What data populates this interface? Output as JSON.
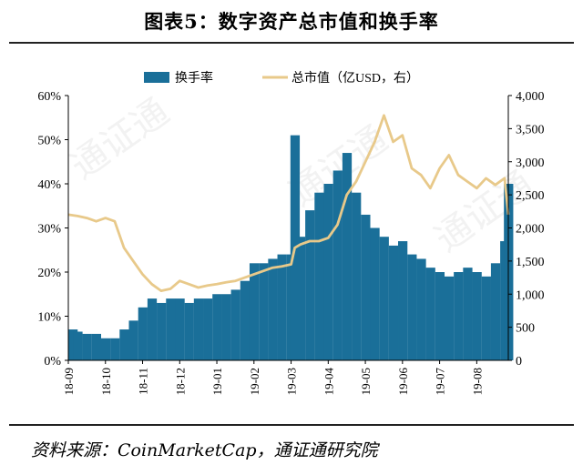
{
  "title": "图表5：数字资产总市值和换手率",
  "source": "资料来源：CoinMarketCap，通证通研究院",
  "colors": {
    "bar": "#1a6f99",
    "line": "#e8c98a",
    "text": "#000000"
  },
  "chart_data": {
    "type": "bar+line",
    "legend_position": "top-center",
    "grid": false,
    "x_ticks": [
      "18-09",
      "18-10",
      "18-11",
      "18-12",
      "19-01",
      "19-02",
      "19-03",
      "19-04",
      "19-05",
      "19-06",
      "19-07",
      "19-08"
    ],
    "y_left": {
      "ticks": [
        "0%",
        "10%",
        "20%",
        "30%",
        "40%",
        "50%",
        "60%"
      ],
      "range": [
        0,
        60
      ],
      "unit": "%"
    },
    "y_right": {
      "ticks": [
        "0",
        "500",
        "1,000",
        "1,500",
        "2,000",
        "2,500",
        "3,000",
        "3,500",
        "4,000"
      ],
      "range": [
        0,
        4000
      ]
    },
    "series": [
      {
        "name": "换手率",
        "kind": "bar",
        "axis": "left",
        "x": [
          0.0,
          0.25,
          0.5,
          0.75,
          1.0,
          1.25,
          1.5,
          1.75,
          2.0,
          2.25,
          2.5,
          2.75,
          3.0,
          3.25,
          3.5,
          3.75,
          4.0,
          4.25,
          4.5,
          4.75,
          5.0,
          5.25,
          5.5,
          5.75,
          6.0,
          6.1,
          6.25,
          6.5,
          6.75,
          7.0,
          7.25,
          7.5,
          7.75,
          8.0,
          8.25,
          8.5,
          8.75,
          9.0,
          9.25,
          9.5,
          9.75,
          10.0,
          10.25,
          10.5,
          10.75,
          11.0,
          11.25,
          11.5,
          11.75,
          11.85
        ],
        "values": [
          7,
          6.5,
          6,
          6,
          5,
          5,
          7,
          9,
          12,
          14,
          13,
          14,
          14,
          13,
          14,
          14,
          15,
          15,
          16,
          18,
          22,
          22,
          23,
          24,
          24,
          51,
          28,
          34,
          38,
          40,
          43,
          47,
          38,
          33,
          30,
          28,
          26,
          27,
          24,
          23,
          21,
          20,
          19,
          20,
          21,
          20,
          19,
          22,
          27,
          40
        ]
      },
      {
        "name": "总市值（亿USD，右）",
        "kind": "line",
        "axis": "right",
        "x": [
          0.0,
          0.25,
          0.5,
          0.75,
          1.0,
          1.25,
          1.5,
          1.75,
          2.0,
          2.25,
          2.5,
          2.75,
          3.0,
          3.25,
          3.5,
          3.75,
          4.0,
          4.25,
          4.5,
          4.75,
          5.0,
          5.25,
          5.5,
          5.75,
          6.0,
          6.1,
          6.25,
          6.5,
          6.75,
          7.0,
          7.25,
          7.5,
          7.75,
          8.0,
          8.25,
          8.5,
          8.75,
          9.0,
          9.25,
          9.5,
          9.75,
          10.0,
          10.25,
          10.5,
          10.75,
          11.0,
          11.25,
          11.5,
          11.75,
          11.85
        ],
        "values": [
          2200,
          2180,
          2150,
          2100,
          2150,
          2100,
          1700,
          1500,
          1300,
          1150,
          1050,
          1080,
          1200,
          1150,
          1100,
          1130,
          1150,
          1180,
          1200,
          1250,
          1300,
          1350,
          1400,
          1420,
          1450,
          1700,
          1750,
          1800,
          1800,
          1850,
          2050,
          2500,
          2700,
          3000,
          3300,
          3700,
          3300,
          3400,
          2900,
          2800,
          2600,
          2900,
          3100,
          2800,
          2700,
          2600,
          2750,
          2650,
          2750,
          2200
        ]
      }
    ]
  }
}
